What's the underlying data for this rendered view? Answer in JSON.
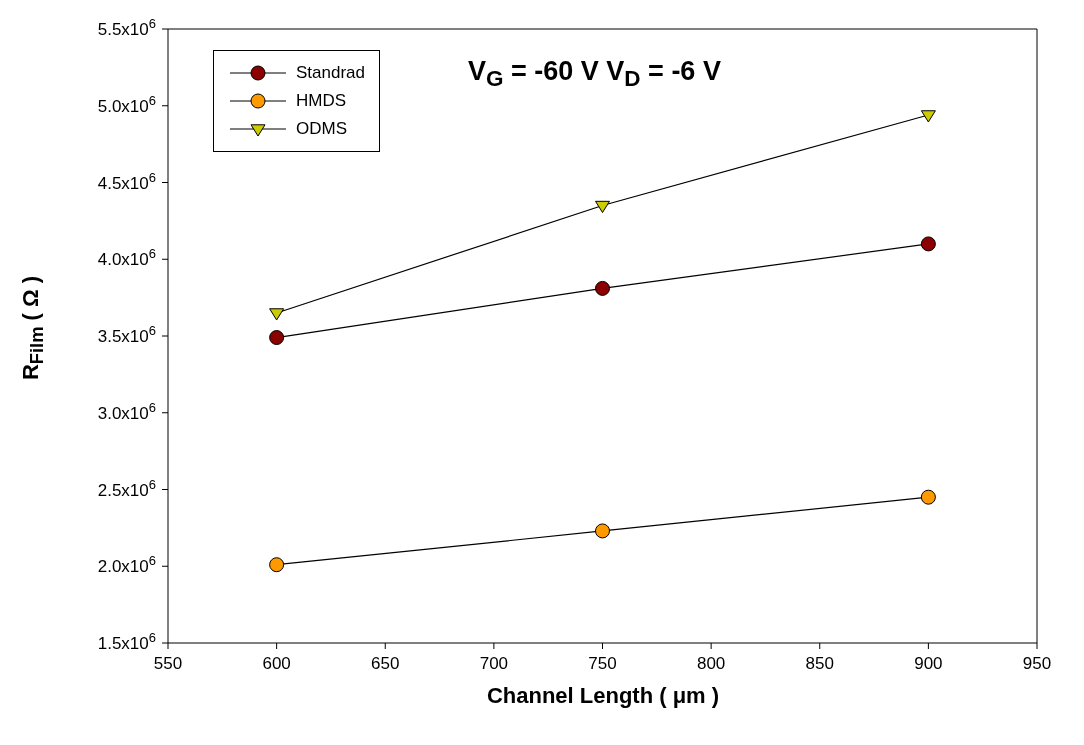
{
  "chart_data": {
    "type": "line",
    "xlabel": "Channel Length ( μm )",
    "ylabel": "R$_{Film}$ ( Ω )",
    "annotations": [
      "V$_{G}$ = -60 V  V$_{D}$ = -6 V"
    ],
    "x": [
      600,
      750,
      900
    ],
    "series": [
      {
        "name": "Standrad",
        "color": "#8b0000",
        "marker": "circle",
        "values": [
          3490000,
          3810000,
          4100000
        ]
      },
      {
        "name": "HMDS",
        "color": "#ff9900",
        "marker": "circle",
        "values": [
          2010000,
          2230000,
          2450000
        ]
      },
      {
        "name": "ODMS",
        "color": "#cccc00",
        "marker": "triangle",
        "values": [
          3650000,
          4350000,
          4940000
        ]
      }
    ],
    "xlim": [
      550,
      950
    ],
    "xticks": [
      550,
      600,
      650,
      700,
      750,
      800,
      850,
      900,
      950
    ],
    "ylim": [
      1500000,
      5500000
    ],
    "yticks": [
      {
        "value": 1500000,
        "label": "1.5x10$^{6}$"
      },
      {
        "value": 2000000,
        "label": "2.0x10$^{6}$"
      },
      {
        "value": 2500000,
        "label": "2.5x10$^{6}$"
      },
      {
        "value": 3000000,
        "label": "3.0x10$^{6}$"
      },
      {
        "value": 3500000,
        "label": "3.5x10$^{6}$"
      },
      {
        "value": 4000000,
        "label": "4.0x10$^{6}$"
      },
      {
        "value": 4500000,
        "label": "4.5x10$^{6}$"
      },
      {
        "value": 5000000,
        "label": "5.0x10$^{6}$"
      },
      {
        "value": 5500000,
        "label": "5.5x10$^{6}$"
      }
    ],
    "grid": false,
    "legend": "top left",
    "line_style": "solid"
  }
}
